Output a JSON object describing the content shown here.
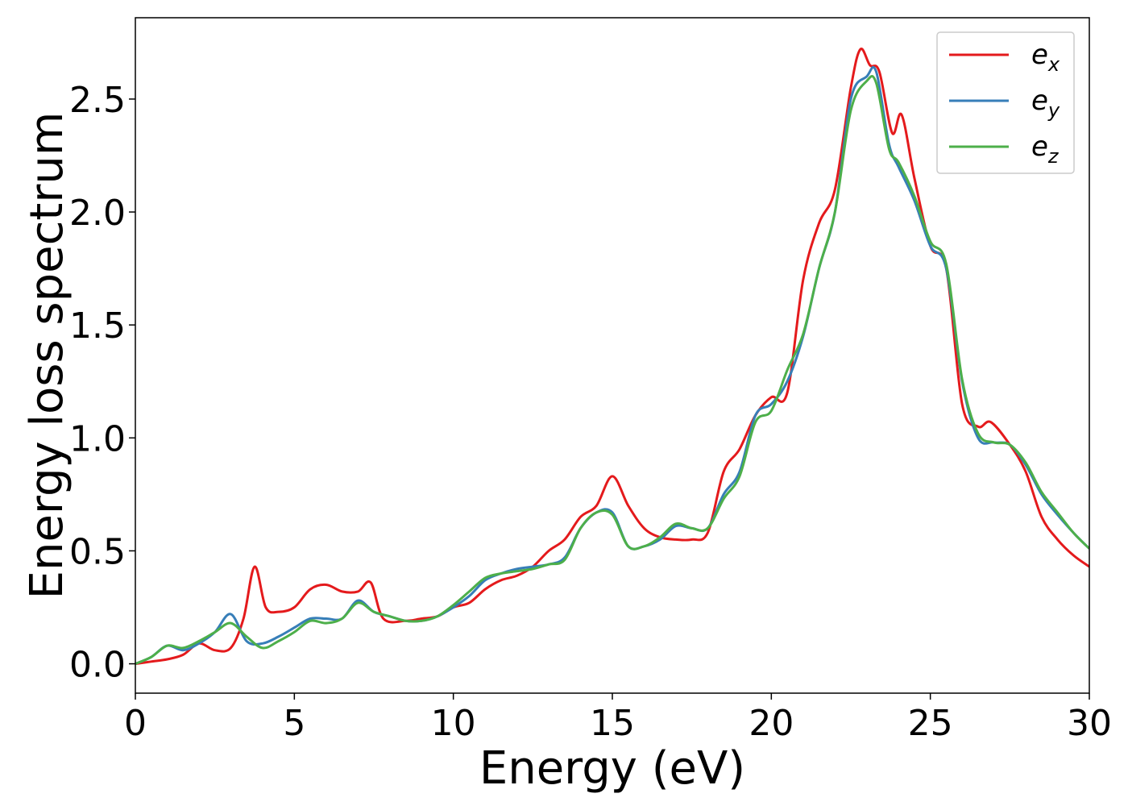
{
  "chart_data": {
    "type": "line",
    "title": "",
    "xlabel": "Energy (eV)",
    "ylabel": "Energy loss spectrum",
    "xlim": [
      0,
      30
    ],
    "ylim": [
      -0.13,
      2.86
    ],
    "xticks": [
      0,
      5,
      10,
      15,
      20,
      25,
      30
    ],
    "yticks": [
      0.0,
      0.5,
      1.0,
      1.5,
      2.0,
      2.5
    ],
    "xtick_labels": [
      "0",
      "5",
      "10",
      "15",
      "20",
      "25",
      "30"
    ],
    "ytick_labels": [
      "0.0",
      "0.5",
      "1.0",
      "1.5",
      "2.0",
      "2.5"
    ],
    "grid": false,
    "legend_position": "top-right",
    "series": [
      {
        "name": "e_x",
        "label_base": "e",
        "label_sub": "x",
        "color": "#e41a1c",
        "x": [
          0,
          0.5,
          1,
          1.5,
          2,
          2.5,
          3,
          3.4,
          3.75,
          4.1,
          4.5,
          5,
          5.5,
          6,
          6.5,
          7,
          7.4,
          7.8,
          8.5,
          9,
          9.5,
          10,
          10.5,
          11,
          11.5,
          12,
          12.5,
          13,
          13.5,
          14,
          14.5,
          15,
          15.5,
          16,
          16.5,
          17,
          17.5,
          18,
          18.5,
          19,
          19.5,
          20,
          20.5,
          21,
          21.5,
          22,
          22.5,
          22.8,
          23.1,
          23.4,
          23.8,
          24.1,
          24.5,
          25,
          25.5,
          26,
          26.5,
          26.9,
          27.5,
          28,
          28.5,
          29,
          29.5,
          30
        ],
        "y": [
          0,
          0.01,
          0.02,
          0.04,
          0.09,
          0.06,
          0.07,
          0.2,
          0.43,
          0.25,
          0.23,
          0.25,
          0.33,
          0.35,
          0.32,
          0.32,
          0.36,
          0.2,
          0.19,
          0.2,
          0.21,
          0.25,
          0.27,
          0.33,
          0.37,
          0.39,
          0.43,
          0.5,
          0.55,
          0.65,
          0.7,
          0.83,
          0.7,
          0.6,
          0.56,
          0.55,
          0.55,
          0.58,
          0.85,
          0.95,
          1.1,
          1.18,
          1.2,
          1.7,
          1.95,
          2.1,
          2.55,
          2.72,
          2.65,
          2.62,
          2.35,
          2.43,
          2.15,
          1.85,
          1.75,
          1.15,
          1.05,
          1.07,
          0.97,
          0.85,
          0.65,
          0.55,
          0.48,
          0.43
        ]
      },
      {
        "name": "e_y",
        "label_base": "e",
        "label_sub": "y",
        "color": "#377eb8",
        "x": [
          0,
          0.5,
          1,
          1.5,
          2,
          2.5,
          3,
          3.5,
          4,
          4.5,
          5,
          5.5,
          6,
          6.5,
          7,
          7.5,
          8,
          8.5,
          9,
          9.5,
          10,
          10.5,
          11,
          11.5,
          12,
          12.5,
          13,
          13.5,
          14,
          14.5,
          15,
          15.5,
          16,
          16.5,
          17,
          17.5,
          18,
          18.5,
          19,
          19.5,
          20,
          20.5,
          21,
          21.5,
          22,
          22.5,
          23,
          23.3,
          23.7,
          24,
          24.5,
          25,
          25.5,
          26,
          26.5,
          27,
          27.5,
          28,
          28.5,
          29,
          29.5,
          30
        ],
        "y": [
          0,
          0.03,
          0.08,
          0.06,
          0.09,
          0.14,
          0.22,
          0.1,
          0.09,
          0.12,
          0.16,
          0.2,
          0.2,
          0.2,
          0.28,
          0.23,
          0.21,
          0.19,
          0.19,
          0.21,
          0.25,
          0.3,
          0.37,
          0.4,
          0.42,
          0.43,
          0.44,
          0.47,
          0.6,
          0.67,
          0.67,
          0.52,
          0.52,
          0.55,
          0.61,
          0.6,
          0.6,
          0.75,
          0.85,
          1.1,
          1.15,
          1.25,
          1.45,
          1.75,
          2.0,
          2.5,
          2.6,
          2.62,
          2.3,
          2.2,
          2.05,
          1.85,
          1.75,
          1.25,
          1.0,
          0.98,
          0.97,
          0.88,
          0.75,
          0.66,
          0.58,
          0.51
        ]
      },
      {
        "name": "e_z",
        "label_base": "e",
        "label_sub": "z",
        "color": "#4daf4a",
        "x": [
          0,
          0.5,
          1,
          1.5,
          2,
          2.5,
          3,
          3.5,
          4,
          4.5,
          5,
          5.5,
          6,
          6.5,
          7,
          7.5,
          8,
          8.5,
          9,
          9.5,
          10,
          10.5,
          11,
          11.5,
          12,
          12.5,
          13,
          13.5,
          14,
          14.5,
          15,
          15.5,
          16,
          16.5,
          17,
          17.5,
          18,
          18.5,
          19,
          19.5,
          20,
          20.5,
          21,
          21.5,
          22,
          22.5,
          23,
          23.3,
          23.7,
          24,
          24.5,
          25,
          25.5,
          26,
          26.5,
          27,
          27.5,
          28,
          28.5,
          29,
          29.5,
          30
        ],
        "y": [
          0,
          0.03,
          0.08,
          0.07,
          0.1,
          0.14,
          0.18,
          0.12,
          0.07,
          0.1,
          0.14,
          0.19,
          0.18,
          0.2,
          0.27,
          0.23,
          0.21,
          0.19,
          0.19,
          0.21,
          0.26,
          0.32,
          0.38,
          0.4,
          0.41,
          0.42,
          0.44,
          0.46,
          0.6,
          0.67,
          0.66,
          0.52,
          0.52,
          0.56,
          0.62,
          0.6,
          0.6,
          0.73,
          0.83,
          1.07,
          1.12,
          1.3,
          1.46,
          1.75,
          2.0,
          2.45,
          2.58,
          2.57,
          2.28,
          2.22,
          2.07,
          1.87,
          1.77,
          1.26,
          1.02,
          0.98,
          0.97,
          0.89,
          0.76,
          0.67,
          0.58,
          0.51
        ]
      }
    ]
  }
}
